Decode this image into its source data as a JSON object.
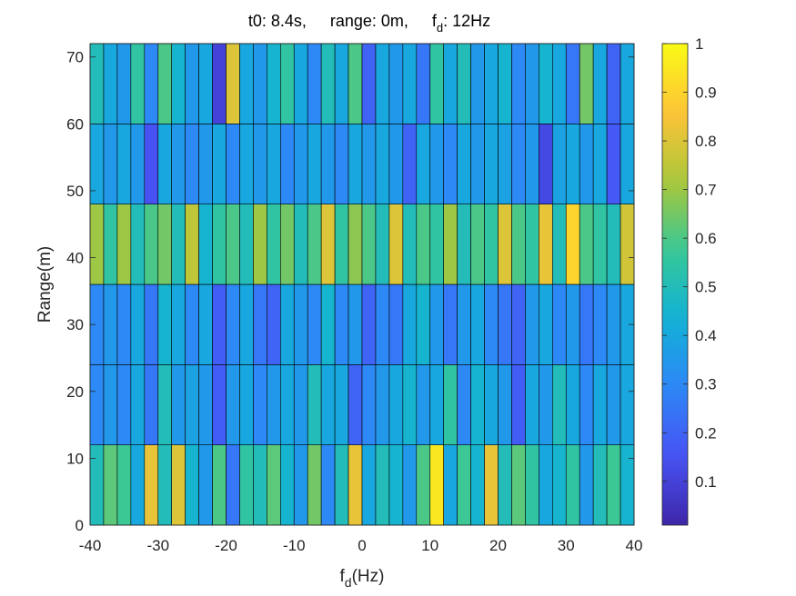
{
  "chart_data": {
    "type": "heatmap",
    "title": {
      "t0": "t0: 8.4s,",
      "range": "range: 0m,",
      "fd_prefix": "f",
      "fd_sub": "d",
      "fd_value": ": 12Hz"
    },
    "xlabel": {
      "prefix": "f",
      "sub": "d",
      "suffix": "(Hz)"
    },
    "ylabel": "Range(m)",
    "xlim": [
      -40,
      40
    ],
    "ylim": [
      0,
      72
    ],
    "x_ticks": [
      "-40",
      "-30",
      "-20",
      "-10",
      "0",
      "10",
      "20",
      "30",
      "40"
    ],
    "y_ticks": [
      "0",
      "10",
      "20",
      "30",
      "40",
      "50",
      "60",
      "70"
    ],
    "colorbar": {
      "ticks": [
        "0.1",
        "0.2",
        "0.3",
        "0.4",
        "0.5",
        "0.6",
        "0.7",
        "0.8",
        "0.9",
        "1"
      ],
      "range": [
        0.01,
        1.0
      ],
      "colormap": "parula"
    },
    "x_step": 2,
    "y_step": 12,
    "x_start": -40,
    "rows": [
      {
        "y": [
          0,
          12
        ],
        "values": [
          0.5,
          0.62,
          0.58,
          0.4,
          0.82,
          0.5,
          0.8,
          0.45,
          0.35,
          0.6,
          0.25,
          0.55,
          0.5,
          0.62,
          0.45,
          0.35,
          0.65,
          0.3,
          0.5,
          0.82,
          0.4,
          0.5,
          0.45,
          0.35,
          0.6,
          0.95,
          0.4,
          0.58,
          0.45,
          0.82,
          0.5,
          0.62,
          0.55,
          0.4,
          0.45,
          0.55,
          0.35,
          0.5,
          0.58,
          0.45
        ]
      },
      {
        "y": [
          12,
          24
        ],
        "values": [
          0.3,
          0.35,
          0.3,
          0.4,
          0.25,
          0.5,
          0.35,
          0.38,
          0.35,
          0.18,
          0.35,
          0.4,
          0.3,
          0.35,
          0.4,
          0.35,
          0.5,
          0.4,
          0.4,
          0.2,
          0.3,
          0.35,
          0.4,
          0.45,
          0.35,
          0.4,
          0.55,
          0.3,
          0.45,
          0.4,
          0.35,
          0.18,
          0.4,
          0.35,
          0.5,
          0.4,
          0.3,
          0.4,
          0.35,
          0.4
        ]
      },
      {
        "y": [
          24,
          36
        ],
        "values": [
          0.3,
          0.35,
          0.3,
          0.4,
          0.25,
          0.45,
          0.4,
          0.3,
          0.4,
          0.18,
          0.3,
          0.4,
          0.25,
          0.2,
          0.4,
          0.35,
          0.3,
          0.45,
          0.3,
          0.35,
          0.2,
          0.3,
          0.25,
          0.4,
          0.45,
          0.35,
          0.25,
          0.35,
          0.4,
          0.3,
          0.25,
          0.2,
          0.35,
          0.4,
          0.3,
          0.35,
          0.25,
          0.3,
          0.35,
          0.4
        ]
      },
      {
        "y": [
          36,
          48
        ],
        "values": [
          0.7,
          0.55,
          0.7,
          0.5,
          0.6,
          0.65,
          0.5,
          0.75,
          0.45,
          0.55,
          0.6,
          0.5,
          0.7,
          0.55,
          0.65,
          0.5,
          0.6,
          0.8,
          0.55,
          0.68,
          0.6,
          0.5,
          0.8,
          0.5,
          0.6,
          0.55,
          0.7,
          0.5,
          0.6,
          0.55,
          0.8,
          0.6,
          0.55,
          0.82,
          0.5,
          0.9,
          0.6,
          0.55,
          0.5,
          0.78
        ]
      },
      {
        "y": [
          48,
          60
        ],
        "values": [
          0.4,
          0.35,
          0.4,
          0.35,
          0.15,
          0.4,
          0.35,
          0.3,
          0.35,
          0.4,
          0.3,
          0.4,
          0.35,
          0.4,
          0.3,
          0.35,
          0.4,
          0.35,
          0.3,
          0.4,
          0.35,
          0.4,
          0.35,
          0.2,
          0.4,
          0.35,
          0.3,
          0.4,
          0.35,
          0.4,
          0.38,
          0.3,
          0.35,
          0.12,
          0.38,
          0.4,
          0.35,
          0.4,
          0.17,
          0.4
        ]
      },
      {
        "y": [
          60,
          72
        ],
        "values": [
          0.5,
          0.4,
          0.35,
          0.55,
          0.3,
          0.6,
          0.45,
          0.35,
          0.4,
          0.1,
          0.8,
          0.4,
          0.35,
          0.45,
          0.55,
          0.4,
          0.3,
          0.5,
          0.4,
          0.6,
          0.2,
          0.4,
          0.35,
          0.4,
          0.25,
          0.55,
          0.4,
          0.5,
          0.35,
          0.4,
          0.45,
          0.3,
          0.35,
          0.45,
          0.4,
          0.25,
          0.65,
          0.4,
          0.2,
          0.4
        ]
      }
    ]
  }
}
